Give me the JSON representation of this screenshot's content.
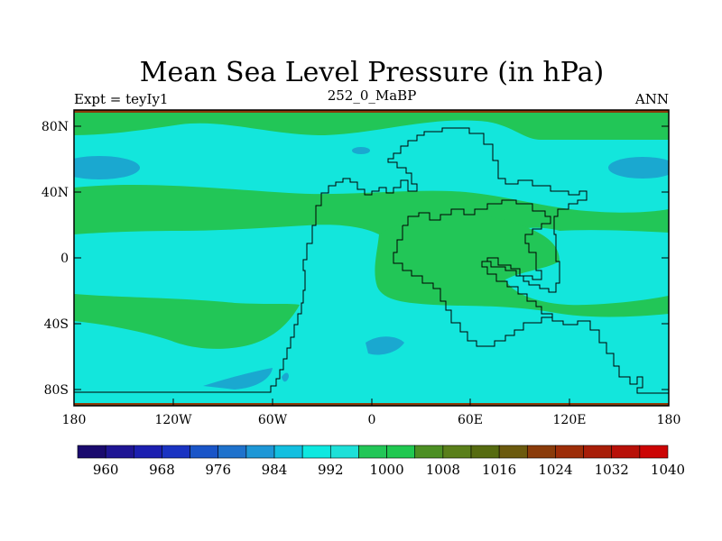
{
  "title": "Mean Sea Level Pressure (in hPa)",
  "left_label": "Expt = teyIy1",
  "center_label": "252_0_MaBP",
  "right_label": "ANN",
  "y_ticks": [
    "80N",
    "40N",
    "0",
    "40S",
    "80S"
  ],
  "x_ticks": [
    "180",
    "120W",
    "60W",
    "0",
    "60E",
    "120E",
    "180"
  ],
  "colorbar": {
    "labels": [
      "960",
      "968",
      "976",
      "984",
      "992",
      "1000",
      "1008",
      "1016",
      "1024",
      "1032",
      "1040"
    ],
    "colors": [
      "#1a0a6e",
      "#1f1594",
      "#1c1fb0",
      "#1a33c2",
      "#1a55c8",
      "#1f72cc",
      "#1e97d6",
      "#13bfe0",
      "#0ee8e0",
      "#1de0d8",
      "#22c657",
      "#20c850",
      "#4c8f23",
      "#5a7f1a",
      "#566b10",
      "#6b5a0e",
      "#8a3b0a",
      "#9d2d08",
      "#a81e08",
      "#b81008",
      "#cc0505"
    ]
  },
  "map_colors": {
    "ocean_mid": "#13e6dc",
    "high": "#22c657",
    "low": "#1aa8d0",
    "edge": "#8a3b0a"
  }
}
